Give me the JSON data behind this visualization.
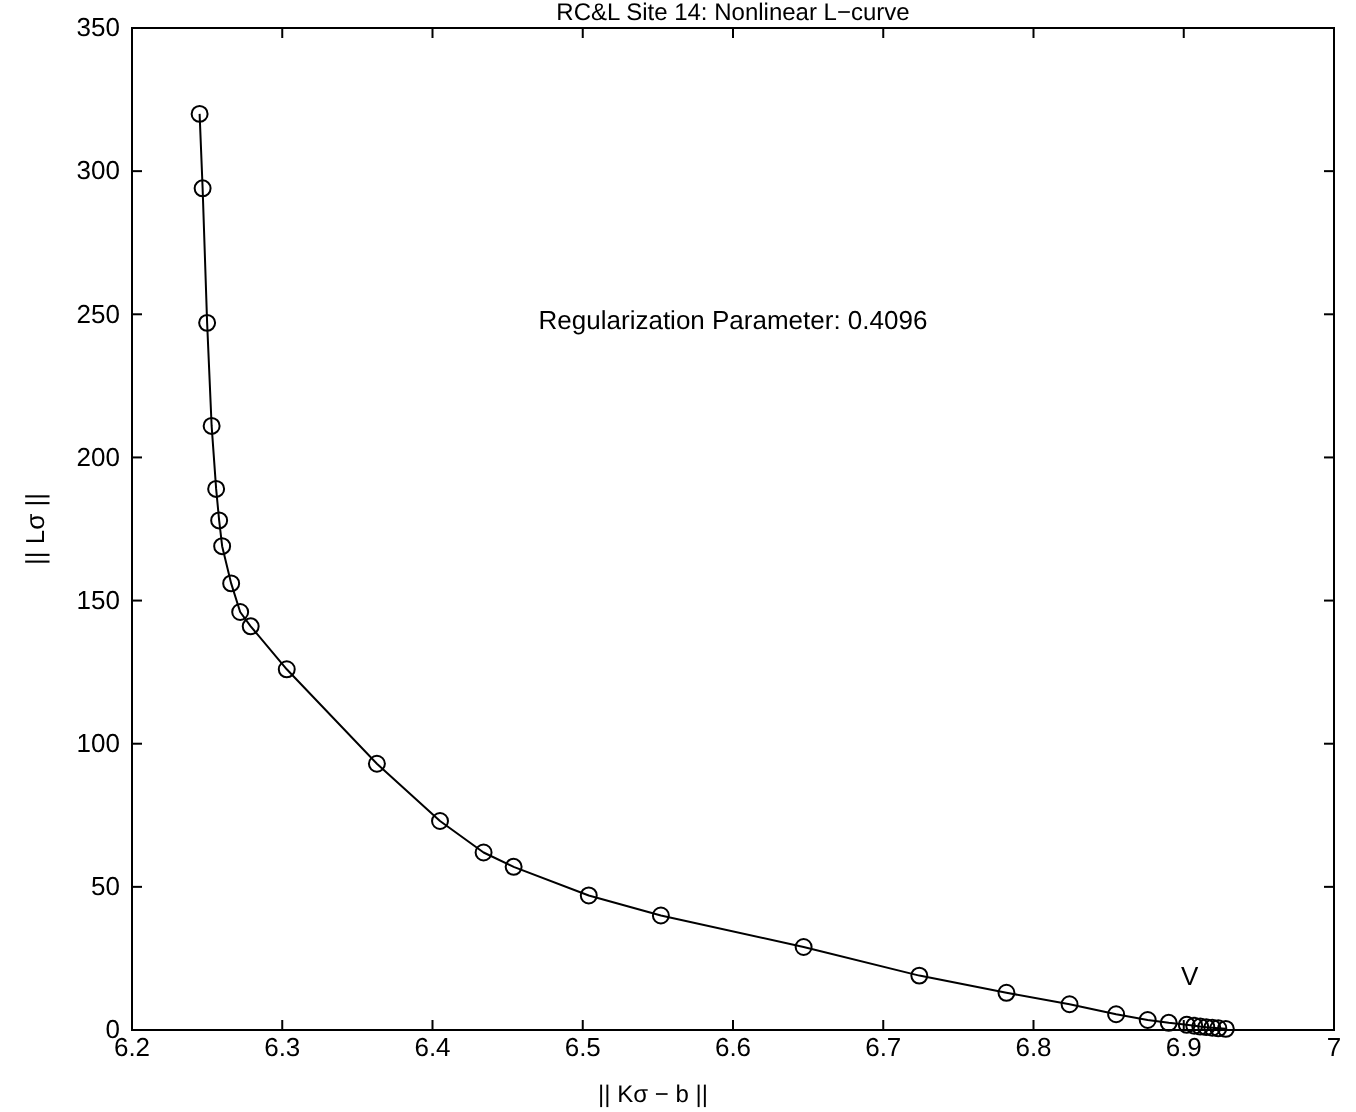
{
  "chart_data": {
    "type": "line",
    "title": "RC&L Site 14: Nonlinear L−curve",
    "xlabel": "|| Kσ − b ||",
    "ylabel": "|| Lσ ||",
    "annotations": [
      "Regularization Parameter: 0.4096",
      "V"
    ],
    "xlim": [
      6.2,
      7
    ],
    "xticks": [
      6.2,
      6.3,
      6.4,
      6.5,
      6.6,
      6.7,
      6.8,
      6.9,
      7
    ],
    "ylim": [
      0,
      350
    ],
    "yticks": [
      0,
      50,
      100,
      150,
      200,
      250,
      300,
      350
    ],
    "grid": false,
    "marker": "circle",
    "line_style": "solid",
    "series": [
      {
        "color": "#000000",
        "x": [
          6.245,
          6.247,
          6.25,
          6.253,
          6.256,
          6.258,
          6.26,
          6.266,
          6.272,
          6.279,
          6.303,
          6.363,
          6.405,
          6.434,
          6.454,
          6.504,
          6.552,
          6.647,
          6.724,
          6.782,
          6.824,
          6.855,
          6.876,
          6.89,
          6.902,
          6.907,
          6.911,
          6.915,
          6.919,
          6.923,
          6.928
        ],
        "values": [
          320,
          294,
          247,
          211,
          189,
          178,
          169,
          156,
          146,
          141,
          126,
          93,
          73,
          62,
          57,
          47,
          40,
          29,
          19,
          13,
          9,
          5.5,
          3.5,
          2.5,
          1.8,
          1.5,
          1.2,
          1,
          0.8,
          0.6,
          0.4
        ]
      }
    ]
  }
}
